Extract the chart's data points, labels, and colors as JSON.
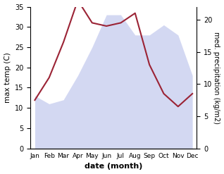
{
  "months": [
    "Jan",
    "Feb",
    "Mar",
    "Apr",
    "May",
    "Jun",
    "Jul",
    "Aug",
    "Sep",
    "Oct",
    "Nov",
    "Dec"
  ],
  "temperature": [
    13,
    11,
    12,
    18,
    25,
    33,
    33,
    28,
    28,
    30.5,
    28,
    18
  ],
  "precipitation": [
    7.5,
    11,
    16.5,
    23,
    19.5,
    19,
    19.5,
    21,
    13,
    8.5,
    6.5,
    8.5
  ],
  "temp_ylim": [
    0,
    35
  ],
  "precip_ylim": [
    0,
    22
  ],
  "temp_yticks": [
    0,
    5,
    10,
    15,
    20,
    25,
    30,
    35
  ],
  "precip_yticks": [
    0,
    5,
    10,
    15,
    20
  ],
  "xlabel": "date (month)",
  "ylabel_left": "max temp (C)",
  "ylabel_right": "med. precipitation (kg/m2)",
  "fill_color": "#b0b8e8",
  "line_color": "#9b2335",
  "background_color": "#ffffff",
  "fill_alpha": 0.55
}
